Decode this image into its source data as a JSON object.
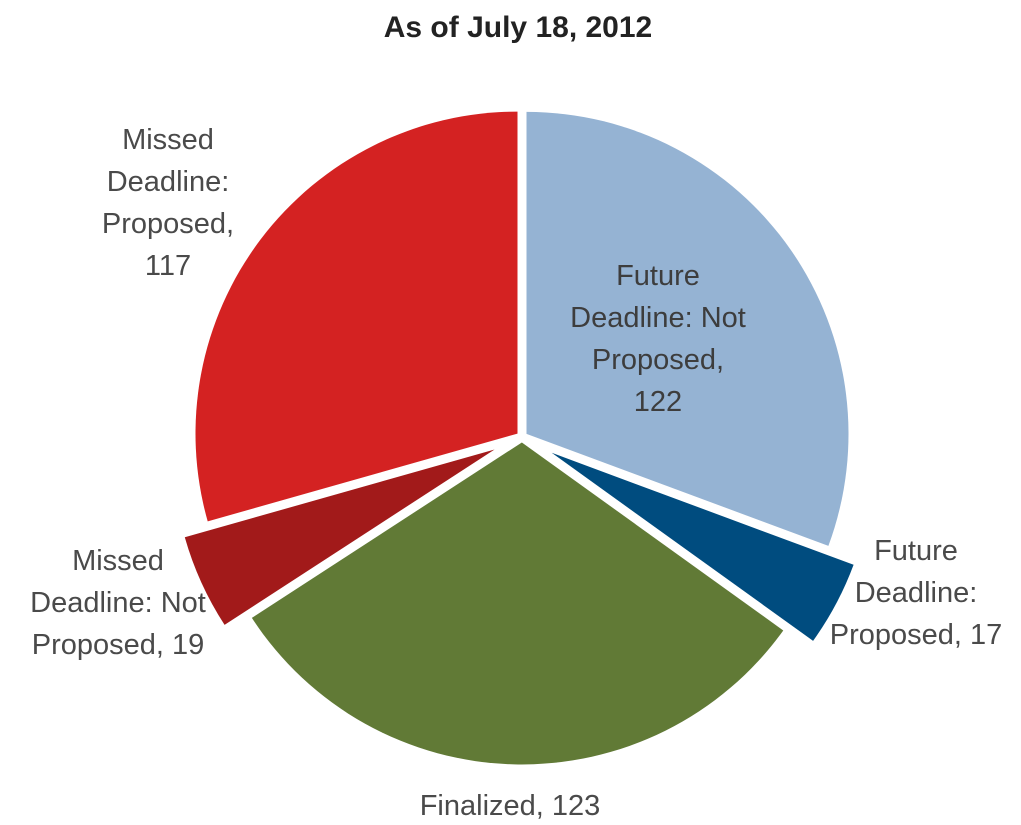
{
  "chart_data": {
    "type": "pie",
    "title": "As of July 18, 2012",
    "slices": [
      {
        "label": "Future Deadline: Not Proposed",
        "value": 122,
        "color": "#95b3d3"
      },
      {
        "label": "Future Deadline: Proposed",
        "value": 17,
        "color": "#004c7f"
      },
      {
        "label": "Finalized",
        "value": 123,
        "color": "#617a36"
      },
      {
        "label": "Missed Deadline: Not Proposed",
        "value": 19,
        "color": "#a21a1a"
      },
      {
        "label": "Missed Deadline: Proposed",
        "value": 117,
        "color": "#d42222"
      }
    ],
    "data_labels": [
      [
        "Future",
        "Deadline: Not",
        "Proposed,",
        "122"
      ],
      [
        "Future",
        "Deadline:",
        "Proposed, 17"
      ],
      [
        "Finalized, 123"
      ],
      [
        "Missed",
        "Deadline: Not",
        "Proposed, 19"
      ],
      [
        "Missed",
        "Deadline:",
        "Proposed,",
        "117"
      ]
    ],
    "start_angle": "12 o'clock",
    "direction": "clockwise",
    "legend": "none"
  }
}
